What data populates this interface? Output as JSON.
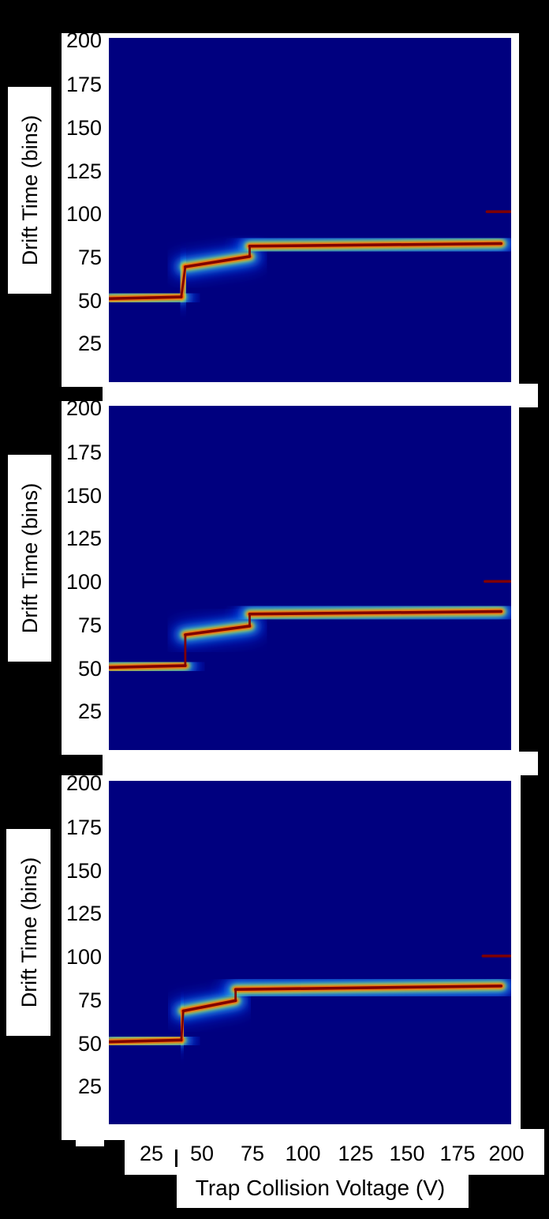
{
  "figure": {
    "xlabel": "Trap Collision Voltage (V)",
    "colors": {
      "background": "#000000",
      "label_box": "#ffffff",
      "heat_base": "#00007f",
      "heat_peak": "#7f0000"
    }
  },
  "chart_data": [
    {
      "type": "heatmap",
      "name": "panel-1",
      "ylabel": "Drift Time (bins)",
      "xlabel": "",
      "xlim": [
        0,
        200
      ],
      "ylim": [
        0,
        200
      ],
      "y_ticks": [
        "200",
        "175",
        "150",
        "125",
        "100",
        "75",
        "50",
        "25"
      ],
      "colormap": "jet",
      "features": [
        {
          "x": [
            0,
            36
          ],
          "y": [
            48.5,
            49.5
          ]
        },
        {
          "x": [
            38,
            70
          ],
          "y": [
            67,
            73
          ]
        },
        {
          "x": [
            70,
            195
          ],
          "y": [
            79,
            80.5
          ]
        },
        {
          "x": [
            188,
            200
          ],
          "y": [
            99,
            99
          ]
        }
      ]
    },
    {
      "type": "heatmap",
      "name": "panel-2",
      "ylabel": "Drift Time (bins)",
      "xlabel": "",
      "xlim": [
        0,
        200
      ],
      "ylim": [
        0,
        200
      ],
      "y_ticks": [
        "200",
        "175",
        "150",
        "125",
        "100",
        "75",
        "50",
        "25"
      ],
      "colormap": "jet",
      "features": [
        {
          "x": [
            0,
            38
          ],
          "y": [
            48,
            49
          ]
        },
        {
          "x": [
            38,
            70
          ],
          "y": [
            67,
            72
          ]
        },
        {
          "x": [
            70,
            195
          ],
          "y": [
            79,
            80.5
          ]
        },
        {
          "x": [
            187,
            200
          ],
          "y": [
            98,
            98
          ]
        }
      ]
    },
    {
      "type": "heatmap",
      "name": "panel-3",
      "ylabel": "Drift Time (bins)",
      "xlabel": "Trap Collision Voltage (V)",
      "xlim": [
        0,
        200
      ],
      "ylim": [
        0,
        200
      ],
      "y_ticks": [
        "200",
        "175",
        "150",
        "125",
        "100",
        "75",
        "50",
        "25"
      ],
      "x_ticks": [
        "25",
        "50",
        "75",
        "100",
        "125",
        "150",
        "175",
        "200"
      ],
      "colormap": "jet",
      "features": [
        {
          "x": [
            0,
            36
          ],
          "y": [
            48,
            49
          ]
        },
        {
          "x": [
            37,
            63
          ],
          "y": [
            66,
            72
          ]
        },
        {
          "x": [
            63,
            195
          ],
          "y": [
            78.5,
            80.5
          ]
        },
        {
          "x": [
            186,
            200
          ],
          "y": [
            98,
            98
          ]
        }
      ]
    }
  ]
}
